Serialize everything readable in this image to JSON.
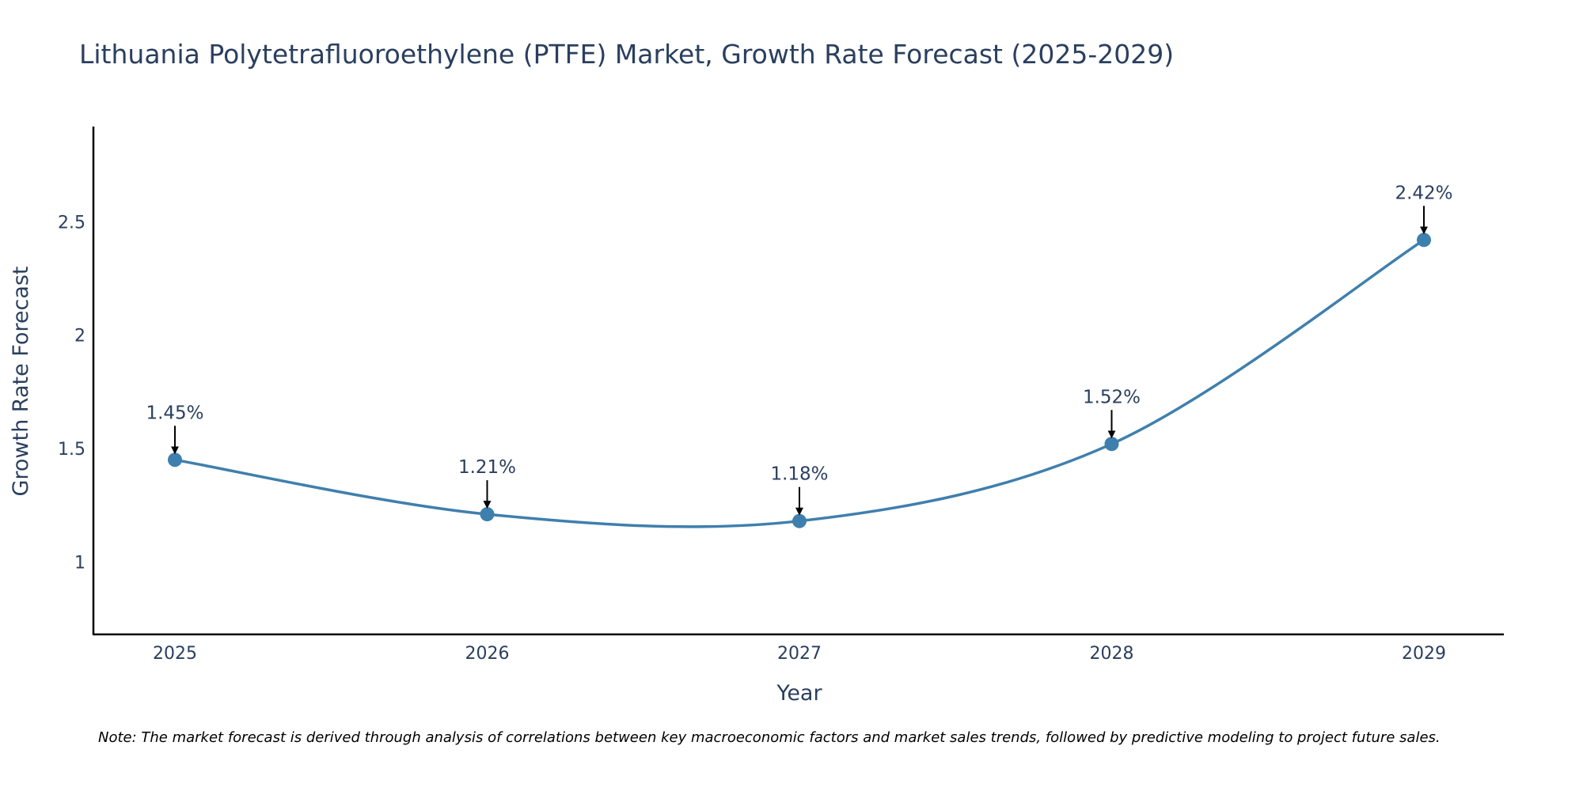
{
  "chart_data": {
    "type": "line",
    "title": "Lithuania Polytetrafluoroethylene (PTFE) Market, Growth Rate Forecast (2025-2029)",
    "xlabel": "Year",
    "ylabel": "Growth Rate Forecast",
    "categories": [
      "2025",
      "2026",
      "2027",
      "2028",
      "2029"
    ],
    "values": [
      1.45,
      1.21,
      1.18,
      1.52,
      2.42
    ],
    "data_labels": [
      "1.45%",
      "1.21%",
      "1.18%",
      "1.52%",
      "2.42%"
    ],
    "yticks": [
      1,
      1.5,
      2,
      2.5
    ],
    "ytick_labels": [
      "1",
      "1.5",
      "2",
      "2.5"
    ],
    "ylim": [
      0.68,
      2.92
    ],
    "grid": false,
    "line_color": "#3f7fad",
    "marker_color": "#3f7fad"
  },
  "note": "Note: The market forecast is derived through analysis of correlations between key macroeconomic factors and market sales trends, followed by predictive modeling to project future sales."
}
